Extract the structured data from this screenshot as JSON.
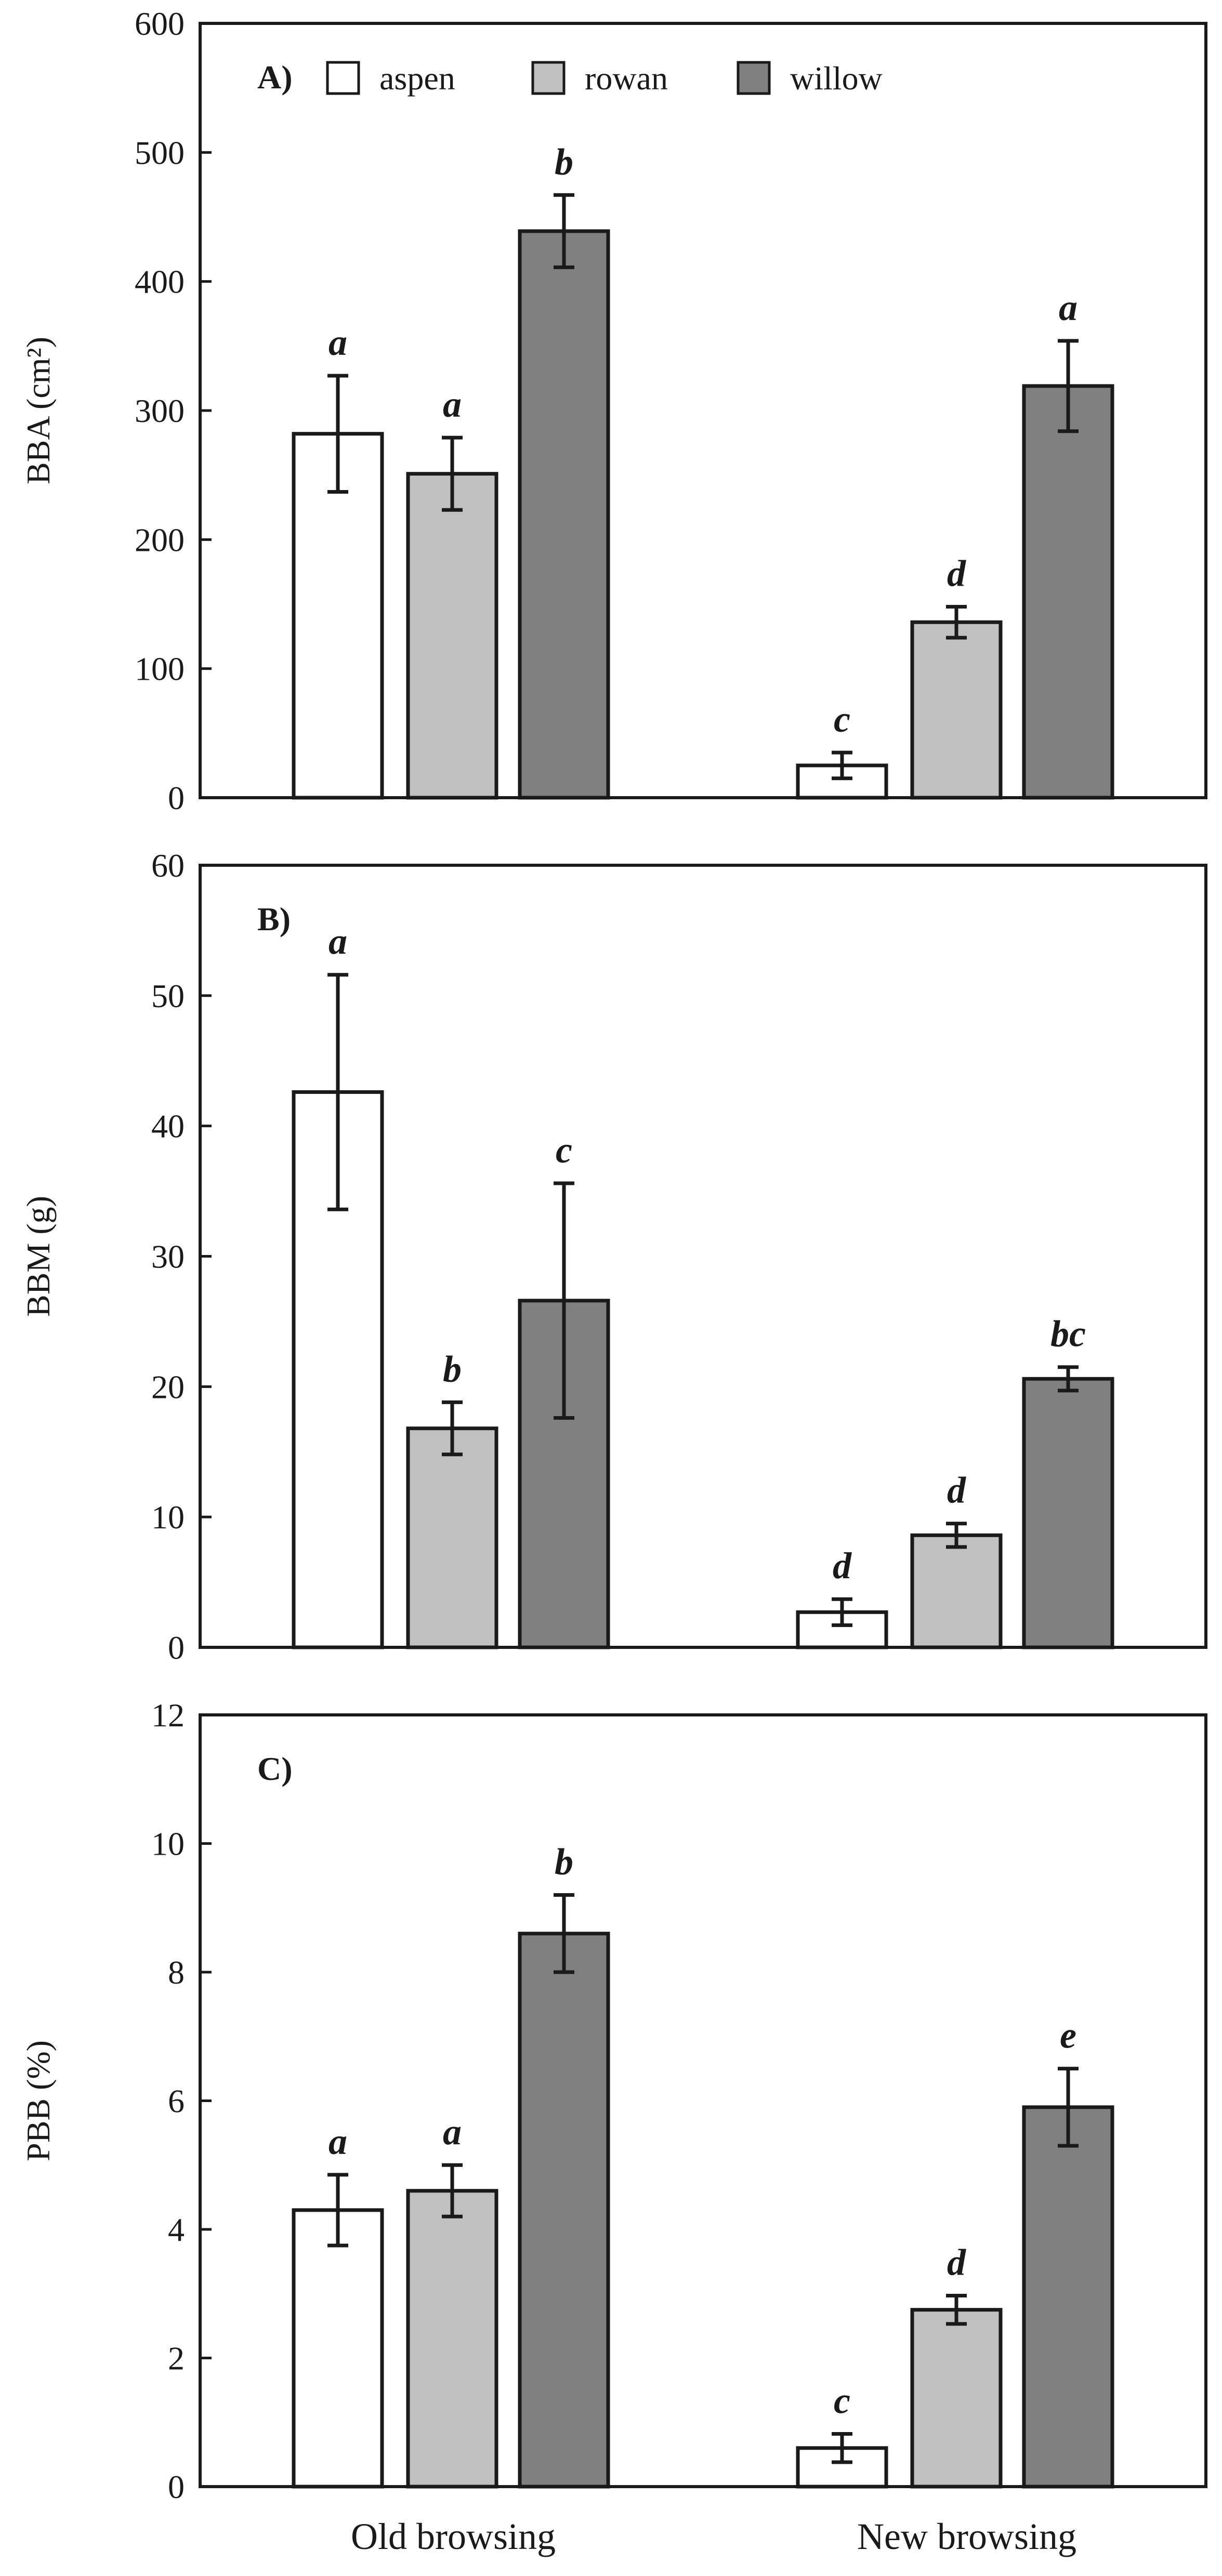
{
  "legend": {
    "items": [
      {
        "name": "aspen",
        "color": "#ffffff"
      },
      {
        "name": "rowan",
        "color": "#c0c0c0"
      },
      {
        "name": "willow",
        "color": "#808080"
      }
    ]
  },
  "chart_data": [
    {
      "type": "bar",
      "panel_label": "A)",
      "ylabel": "BBA (cm²)",
      "ylim": [
        0,
        600
      ],
      "yticks": [
        0,
        100,
        200,
        300,
        400,
        500,
        600
      ],
      "categories": [
        "Old browsing",
        "New browsing"
      ],
      "series": [
        {
          "name": "aspen",
          "values": [
            282,
            25
          ],
          "errors": [
            45,
            10
          ],
          "sig": [
            "a",
            "c"
          ]
        },
        {
          "name": "rowan",
          "values": [
            251,
            136
          ],
          "errors": [
            28,
            12
          ],
          "sig": [
            "a",
            "d"
          ]
        },
        {
          "name": "willow",
          "values": [
            439,
            319
          ],
          "errors": [
            28,
            35
          ],
          "sig": [
            "b",
            "a"
          ]
        }
      ],
      "xlabel": ""
    },
    {
      "type": "bar",
      "panel_label": "B)",
      "ylabel": "BBM (g)",
      "ylim": [
        0,
        60
      ],
      "yticks": [
        0,
        10,
        20,
        30,
        40,
        50,
        60
      ],
      "categories": [
        "Old browsing",
        "New browsing"
      ],
      "series": [
        {
          "name": "aspen",
          "values": [
            42.6,
            2.7
          ],
          "errors": [
            9,
            1
          ],
          "sig": [
            "a",
            "d"
          ]
        },
        {
          "name": "rowan",
          "values": [
            16.8,
            8.6
          ],
          "errors": [
            2,
            0.9
          ],
          "sig": [
            "b",
            "d"
          ]
        },
        {
          "name": "willow",
          "values": [
            26.6,
            20.6
          ],
          "errors": [
            9,
            0.9
          ],
          "sig": [
            "c",
            "bc"
          ]
        }
      ],
      "xlabel": ""
    },
    {
      "type": "bar",
      "panel_label": "C)",
      "ylabel": "PBB (%)",
      "ylim": [
        0,
        12
      ],
      "yticks": [
        0,
        2,
        4,
        6,
        8,
        10,
        12
      ],
      "categories": [
        "Old browsing",
        "New browsing"
      ],
      "series": [
        {
          "name": "aspen",
          "values": [
            4.3,
            0.6
          ],
          "errors": [
            0.55,
            0.22
          ],
          "sig": [
            "a",
            "c"
          ]
        },
        {
          "name": "rowan",
          "values": [
            4.6,
            2.75
          ],
          "errors": [
            0.4,
            0.22
          ],
          "sig": [
            "a",
            "d"
          ]
        },
        {
          "name": "willow",
          "values": [
            8.6,
            5.9
          ],
          "errors": [
            0.6,
            0.6
          ],
          "sig": [
            "b",
            "e"
          ]
        }
      ],
      "xlabel": ""
    }
  ]
}
